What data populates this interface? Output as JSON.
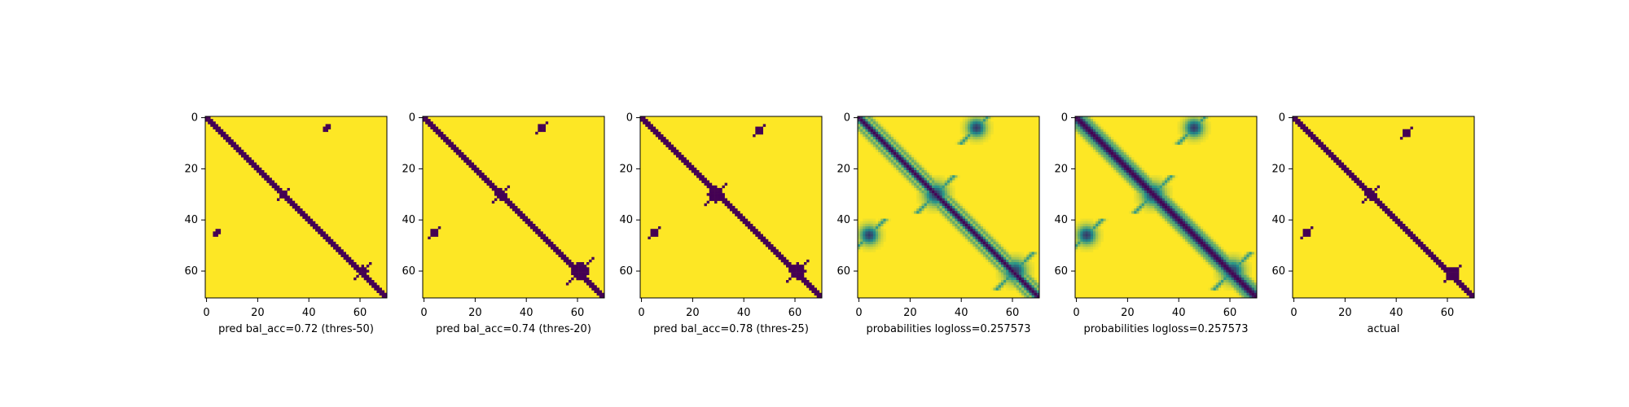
{
  "chart_data": {
    "type": "heatmap",
    "title": "",
    "grid": false,
    "size": 71,
    "colormap": "viridis",
    "colors": {
      "low": "#440154",
      "high": "#fde725",
      "mid": "#21918c"
    },
    "xticks": [
      "0",
      "20",
      "40",
      "60"
    ],
    "yticks": [
      "0",
      "20",
      "40",
      "60"
    ],
    "xlim": [
      0,
      71
    ],
    "ylim": [
      71,
      0
    ],
    "panels": [
      {
        "xlabel": "pred bal_acc=0.72 (thres-50)",
        "kind": "binary",
        "diag_halfwidth": 1.4,
        "blobs": [
          {
            "cx": 61,
            "cy": 60,
            "r": 2.2
          },
          {
            "cx": 30,
            "cy": 30,
            "r": 1.4
          },
          {
            "cx": 47,
            "cy": 4,
            "r": 1.0
          },
          {
            "cx": 4,
            "cy": 45,
            "r": 1.0
          }
        ]
      },
      {
        "xlabel": "pred bal_acc=0.74 (thres-20)",
        "kind": "binary",
        "diag_halfwidth": 1.8,
        "blobs": [
          {
            "cx": 61,
            "cy": 60,
            "r": 3.2
          },
          {
            "cx": 30,
            "cy": 30,
            "r": 2.2
          },
          {
            "cx": 46,
            "cy": 4,
            "r": 1.5
          },
          {
            "cx": 4,
            "cy": 45,
            "r": 1.5
          }
        ]
      },
      {
        "xlabel": "pred bal_acc=0.78 (thres-25)",
        "kind": "binary",
        "diag_halfwidth": 1.7,
        "blobs": [
          {
            "cx": 61,
            "cy": 60,
            "r": 3.0
          },
          {
            "cx": 29,
            "cy": 30,
            "r": 3.0
          },
          {
            "cx": 46,
            "cy": 5,
            "r": 1.6
          },
          {
            "cx": 5,
            "cy": 45,
            "r": 1.6
          }
        ]
      },
      {
        "xlabel": "probabilities logloss=0.257573",
        "kind": "prob",
        "diag_halfwidth": 1.6,
        "blobs": [
          {
            "cx": 61,
            "cy": 60,
            "r": 3.0
          },
          {
            "cx": 30,
            "cy": 30,
            "r": 3.0
          },
          {
            "cx": 46,
            "cy": 4,
            "r": 2.5
          },
          {
            "cx": 4,
            "cy": 46,
            "r": 2.5
          }
        ]
      },
      {
        "xlabel": "probabilities logloss=0.257573",
        "kind": "prob",
        "diag_halfwidth": 2.2,
        "blobs": [
          {
            "cx": 61,
            "cy": 60,
            "r": 3.0
          },
          {
            "cx": 30,
            "cy": 30,
            "r": 3.0
          },
          {
            "cx": 46,
            "cy": 4,
            "r": 2.5
          },
          {
            "cx": 4,
            "cy": 46,
            "r": 2.5
          }
        ]
      },
      {
        "xlabel": "actual",
        "kind": "binary",
        "diag_halfwidth": 1.2,
        "blobs": [
          {
            "cx": 62,
            "cy": 61,
            "r": 2.4
          },
          {
            "cx": 30,
            "cy": 30,
            "r": 2.0
          },
          {
            "cx": 44,
            "cy": 6,
            "r": 1.5
          },
          {
            "cx": 5,
            "cy": 45,
            "r": 1.5
          }
        ]
      }
    ]
  }
}
